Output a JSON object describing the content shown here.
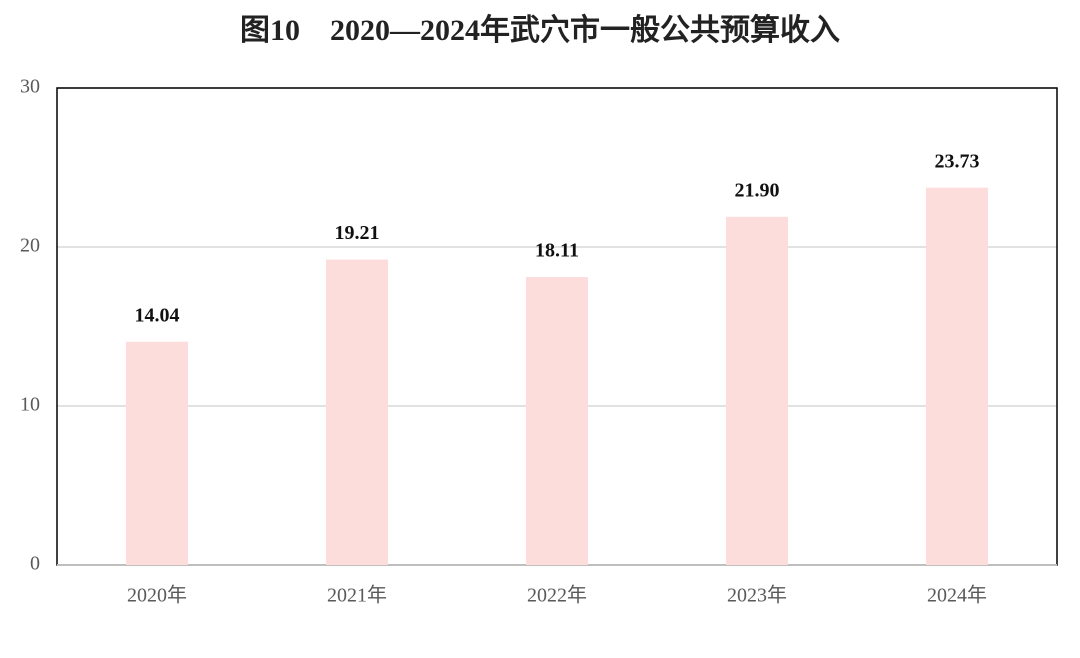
{
  "chart_data": {
    "type": "bar",
    "title": "图10　2020—2024年武穴市一般公共预算收入",
    "categories": [
      "2020年",
      "2021年",
      "2022年",
      "2023年",
      "2024年"
    ],
    "values": [
      14.04,
      19.21,
      18.11,
      21.9,
      23.73
    ],
    "value_labels": [
      "14.04",
      "19.21",
      "18.11",
      "21.90",
      "23.73"
    ],
    "color": "#fddcdc",
    "ylim": [
      0,
      30
    ],
    "yticks": [
      0,
      10,
      20,
      30
    ],
    "grid": true
  }
}
